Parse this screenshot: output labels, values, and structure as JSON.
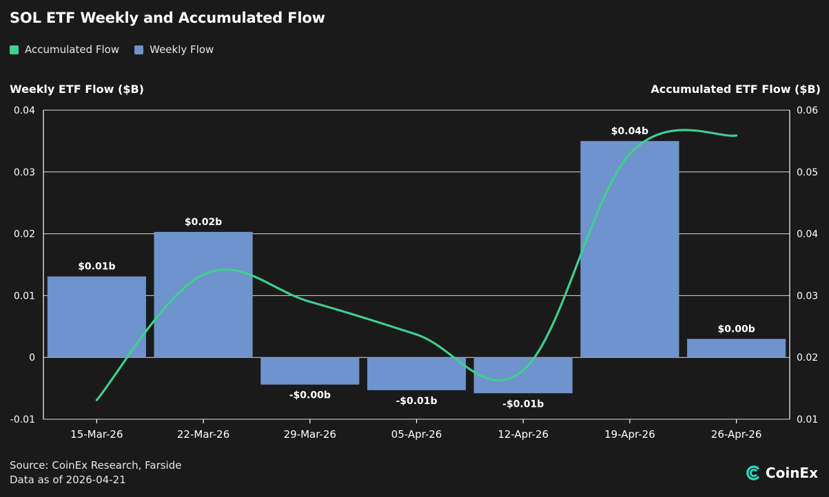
{
  "title": "SOL ETF Weekly and Accumulated Flow",
  "legend": [
    {
      "label": "Accumulated Flow",
      "color": "#3fcf8e"
    },
    {
      "label": "Weekly Flow",
      "color": "#6f93cc"
    }
  ],
  "left_axis_title": "Weekly ETF Flow ($B)",
  "right_axis_title": "Accumulated ETF Flow ($B)",
  "source": "Source: CoinEx Research, Farside",
  "data_as_of": "Data as of 2026-04-21",
  "brand": {
    "name": "CoinEx",
    "icon": "coinex-logo-icon"
  },
  "chart_data": {
    "type": "bar",
    "categories": [
      "15-Mar-26",
      "22-Mar-26",
      "29-Mar-26",
      "05-Apr-26",
      "12-Apr-26",
      "19-Apr-26",
      "26-Apr-26"
    ],
    "series": [
      {
        "name": "Weekly Flow",
        "type": "bar",
        "axis": "left",
        "values": [
          0.0131,
          0.0203,
          -0.0044,
          -0.0053,
          -0.0058,
          0.035,
          0.003
        ],
        "labels": [
          "$0.01b",
          "$0.02b",
          "-$0.00b",
          "-$0.01b",
          "-$0.01b",
          "$0.04b",
          "$0.00b"
        ],
        "color": "#6f93cc"
      },
      {
        "name": "Accumulated Flow",
        "type": "line",
        "axis": "right",
        "values": [
          0.0131,
          0.0334,
          0.029,
          0.0237,
          0.0179,
          0.0529,
          0.0559
        ],
        "color": "#3fcf8e"
      }
    ],
    "left_axis": {
      "min": -0.01,
      "max": 0.04,
      "ticks": [
        "-0.01",
        "0",
        "0.01",
        "0.02",
        "0.03",
        "0.04"
      ]
    },
    "right_axis": {
      "min": 0.01,
      "max": 0.06,
      "ticks": [
        "0.01",
        "0.02",
        "0.03",
        "0.04",
        "0.05",
        "0.06"
      ]
    },
    "grid": true,
    "legend_position": "top-left"
  }
}
